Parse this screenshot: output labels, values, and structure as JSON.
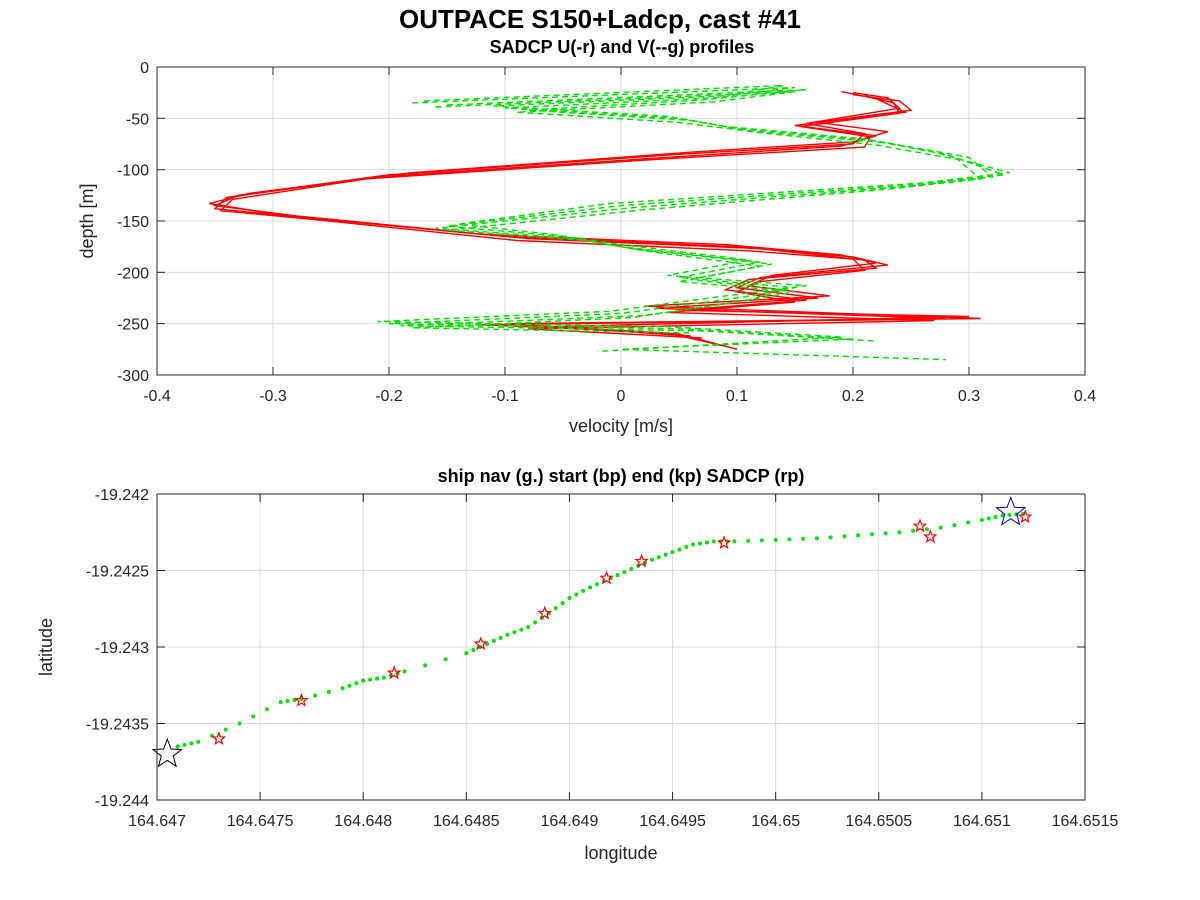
{
  "figure": {
    "title": "OUTPACE S150+Ladcp, cast #41"
  },
  "chart_data": [
    {
      "type": "line",
      "title": "SADCP U(-r) and V(--g) profiles",
      "xlabel": "velocity [m/s]",
      "ylabel": "depth [m]",
      "xlim": [
        -0.4,
        0.4
      ],
      "ylim": [
        -300,
        0
      ],
      "xticks": [
        "-0.4",
        "-0.3",
        "-0.2",
        "-0.1",
        "0",
        "0.1",
        "0.2",
        "0.3",
        "0.4"
      ],
      "yticks": [
        "0",
        "-50",
        "-100",
        "-150",
        "-200",
        "-250",
        "-300"
      ],
      "grid": true,
      "series": [
        {
          "color": "#ff0000",
          "style": "solid",
          "profiles": [
            [
              [
                0.2,
                -25
              ],
              [
                0.23,
                -30
              ],
              [
                0.24,
                -40
              ],
              [
                0.16,
                -55
              ],
              [
                0.21,
                -65
              ],
              [
                0.2,
                -75
              ],
              [
                0.05,
                -85
              ],
              [
                -0.2,
                -105
              ],
              [
                -0.33,
                -125
              ],
              [
                -0.35,
                -135
              ],
              [
                -0.28,
                -145
              ],
              [
                -0.1,
                -165
              ],
              [
                0.1,
                -175
              ],
              [
                0.2,
                -185
              ],
              [
                0.23,
                -193
              ],
              [
                0.12,
                -205
              ],
              [
                0.1,
                -215
              ],
              [
                0.17,
                -225
              ],
              [
                0.03,
                -235
              ],
              [
                0.28,
                -245
              ],
              [
                -0.1,
                -250
              ],
              [
                0.05,
                -260
              ],
              [
                0.1,
                -275
              ]
            ],
            [
              [
                0.2,
                -27
              ],
              [
                0.24,
                -33
              ],
              [
                0.25,
                -42
              ],
              [
                0.15,
                -57
              ],
              [
                0.22,
                -67
              ],
              [
                0.19,
                -77
              ],
              [
                0.04,
                -88
              ],
              [
                -0.21,
                -107
              ],
              [
                -0.34,
                -127
              ],
              [
                -0.35,
                -138
              ],
              [
                -0.27,
                -147
              ],
              [
                -0.08,
                -167
              ],
              [
                0.12,
                -177
              ],
              [
                0.21,
                -188
              ],
              [
                0.22,
                -196
              ],
              [
                0.11,
                -207
              ],
              [
                0.09,
                -217
              ],
              [
                0.16,
                -227
              ],
              [
                0.05,
                -237
              ],
              [
                0.3,
                -243
              ],
              [
                -0.06,
                -253
              ],
              [
                0.06,
                -262
              ]
            ],
            [
              [
                0.19,
                -24
              ],
              [
                0.22,
                -31
              ],
              [
                0.245,
                -44
              ],
              [
                0.17,
                -54
              ],
              [
                0.23,
                -63
              ],
              [
                0.2,
                -73
              ],
              [
                0.06,
                -83
              ],
              [
                -0.18,
                -103
              ],
              [
                -0.32,
                -123
              ],
              [
                -0.355,
                -133
              ],
              [
                -0.3,
                -143
              ],
              [
                -0.12,
                -163
              ],
              [
                0.09,
                -173
              ],
              [
                0.19,
                -183
              ],
              [
                0.22,
                -191
              ],
              [
                0.13,
                -203
              ],
              [
                0.11,
                -213
              ],
              [
                0.18,
                -223
              ],
              [
                0.02,
                -233
              ],
              [
                0.31,
                -245
              ],
              [
                -0.12,
                -251
              ],
              [
                0.04,
                -259
              ],
              [
                0.09,
                -272
              ]
            ],
            [
              [
                0.21,
                -28
              ],
              [
                0.235,
                -35
              ],
              [
                0.24,
                -45
              ],
              [
                0.155,
                -58
              ],
              [
                0.215,
                -68
              ],
              [
                0.21,
                -78
              ],
              [
                0.03,
                -90
              ],
              [
                -0.22,
                -109
              ],
              [
                -0.335,
                -129
              ],
              [
                -0.345,
                -140
              ],
              [
                -0.26,
                -149
              ],
              [
                -0.09,
                -169
              ],
              [
                0.11,
                -179
              ],
              [
                0.2,
                -187
              ],
              [
                0.21,
                -198
              ],
              [
                0.12,
                -209
              ],
              [
                0.1,
                -219
              ],
              [
                0.15,
                -229
              ],
              [
                0.04,
                -239
              ],
              [
                0.27,
                -247
              ],
              [
                -0.08,
                -255
              ],
              [
                0.07,
                -264
              ]
            ]
          ]
        },
        {
          "color": "#00e000",
          "style": "dashed",
          "profiles": [
            [
              [
                -0.18,
                -35
              ],
              [
                0.15,
                -20
              ],
              [
                0.08,
                -30
              ],
              [
                -0.1,
                -40
              ],
              [
                0.05,
                -50
              ],
              [
                0.1,
                -60
              ],
              [
                0.22,
                -72
              ],
              [
                0.28,
                -85
              ],
              [
                0.33,
                -105
              ],
              [
                0.25,
                -115
              ],
              [
                0.0,
                -135
              ],
              [
                -0.15,
                -155
              ],
              [
                -0.05,
                -165
              ],
              [
                0.0,
                -175
              ],
              [
                0.12,
                -190
              ],
              [
                0.05,
                -205
              ],
              [
                0.15,
                -215
              ],
              [
                0.1,
                -225
              ],
              [
                0.0,
                -240
              ],
              [
                -0.2,
                -250
              ],
              [
                0.05,
                -255
              ],
              [
                0.2,
                -265
              ],
              [
                0.0,
                -275
              ],
              [
                0.28,
                -285
              ]
            ],
            [
              [
                -0.15,
                -37
              ],
              [
                0.16,
                -22
              ],
              [
                0.07,
                -32
              ],
              [
                -0.08,
                -42
              ],
              [
                0.06,
                -52
              ],
              [
                0.11,
                -62
              ],
              [
                0.23,
                -74
              ],
              [
                0.3,
                -88
              ],
              [
                0.32,
                -107
              ],
              [
                0.24,
                -117
              ],
              [
                0.01,
                -137
              ],
              [
                -0.16,
                -157
              ],
              [
                -0.04,
                -167
              ],
              [
                0.01,
                -177
              ],
              [
                0.13,
                -192
              ],
              [
                0.06,
                -207
              ],
              [
                0.14,
                -217
              ],
              [
                0.11,
                -227
              ],
              [
                0.02,
                -242
              ],
              [
                -0.19,
                -252
              ],
              [
                0.07,
                -257
              ],
              [
                0.22,
                -267
              ]
            ],
            [
              [
                -0.17,
                -33
              ],
              [
                0.14,
                -18
              ],
              [
                0.09,
                -28
              ],
              [
                -0.11,
                -38
              ],
              [
                0.04,
                -48
              ],
              [
                0.09,
                -58
              ],
              [
                0.21,
                -70
              ],
              [
                0.27,
                -83
              ],
              [
                0.335,
                -103
              ],
              [
                0.26,
                -113
              ],
              [
                -0.01,
                -133
              ],
              [
                -0.14,
                -153
              ],
              [
                -0.06,
                -163
              ],
              [
                0.0,
                -173
              ],
              [
                0.11,
                -188
              ],
              [
                0.04,
                -203
              ],
              [
                0.16,
                -213
              ],
              [
                0.09,
                -223
              ],
              [
                -0.01,
                -238
              ],
              [
                -0.21,
                -248
              ],
              [
                0.04,
                -253
              ],
              [
                0.19,
                -263
              ],
              [
                -0.02,
                -277
              ]
            ],
            [
              [
                -0.16,
                -39
              ],
              [
                0.15,
                -24
              ],
              [
                0.08,
                -34
              ],
              [
                -0.09,
                -44
              ],
              [
                0.05,
                -54
              ],
              [
                0.12,
                -64
              ],
              [
                0.22,
                -76
              ],
              [
                0.29,
                -90
              ],
              [
                0.31,
                -109
              ],
              [
                0.23,
                -119
              ],
              [
                0.02,
                -139
              ],
              [
                -0.15,
                -159
              ],
              [
                -0.03,
                -169
              ],
              [
                0.02,
                -179
              ],
              [
                0.12,
                -194
              ],
              [
                0.05,
                -209
              ],
              [
                0.15,
                -219
              ],
              [
                0.1,
                -229
              ],
              [
                0.01,
                -244
              ],
              [
                -0.18,
                -254
              ],
              [
                0.06,
                -259
              ]
            ]
          ]
        }
      ]
    },
    {
      "type": "scatter",
      "title": "ship nav (g.) start (bp) end (kp) SADCP (rp)",
      "xlabel": "longitude",
      "ylabel": "latitude",
      "xlim": [
        164.647,
        164.6515
      ],
      "ylim": [
        -19.244,
        -19.242
      ],
      "xticks": [
        "164.647",
        "164.6475",
        "164.648",
        "164.6485",
        "164.649",
        "164.6495",
        "164.65",
        "164.6505",
        "164.651",
        "164.6515"
      ],
      "yticks": [
        "-19.242",
        "-19.2425",
        "-19.243",
        "-19.2435",
        "-19.244"
      ],
      "grid": true,
      "ship_nav": {
        "color": "#00e000",
        "path": [
          [
            164.6471,
            -19.24365
          ],
          [
            164.6472,
            -19.24362
          ],
          [
            164.6474,
            -19.2435
          ],
          [
            164.6476,
            -19.24336
          ],
          [
            164.6477,
            -19.24334
          ],
          [
            164.6479,
            -19.24327
          ],
          [
            164.648,
            -19.24322
          ],
          [
            164.6481,
            -19.2432
          ],
          [
            164.6482,
            -19.24316
          ],
          [
            164.6485,
            -19.24304
          ],
          [
            164.6486,
            -19.24298
          ],
          [
            164.6487,
            -19.24292
          ],
          [
            164.6488,
            -19.24287
          ],
          [
            164.6489,
            -19.24278
          ],
          [
            164.649,
            -19.24268
          ],
          [
            164.6491,
            -19.24261
          ],
          [
            164.6492,
            -19.24255
          ],
          [
            164.6493,
            -19.24249
          ],
          [
            164.6494,
            -19.24243
          ],
          [
            164.6495,
            -19.24238
          ],
          [
            164.6496,
            -19.24233
          ],
          [
            164.6497,
            -19.24231
          ],
          [
            164.6498,
            -19.24231
          ],
          [
            164.65,
            -19.2423
          ],
          [
            164.6502,
            -19.24229
          ],
          [
            164.6504,
            -19.24227
          ],
          [
            164.6506,
            -19.24225
          ],
          [
            164.6508,
            -19.24222
          ],
          [
            164.651,
            -19.24217
          ],
          [
            164.6511,
            -19.24214
          ],
          [
            164.6512,
            -19.24213
          ]
        ]
      },
      "start": {
        "color": "#000000",
        "lon": 164.64705,
        "lat": -19.2437
      },
      "end": {
        "color": "#0000cc",
        "lon": 164.65114,
        "lat": -19.24212
      },
      "sadcp": {
        "color": "#ff0000",
        "points": [
          [
            164.6473,
            -19.2436
          ],
          [
            164.6477,
            -19.24335
          ],
          [
            164.64815,
            -19.24317
          ],
          [
            164.64857,
            -19.24298
          ],
          [
            164.64888,
            -19.24278
          ],
          [
            164.64918,
            -19.24255
          ],
          [
            164.64935,
            -19.24244
          ],
          [
            164.64975,
            -19.24232
          ],
          [
            164.65075,
            -19.24228
          ],
          [
            164.6507,
            -19.24221
          ],
          [
            164.65121,
            -19.24215
          ]
        ]
      }
    }
  ]
}
